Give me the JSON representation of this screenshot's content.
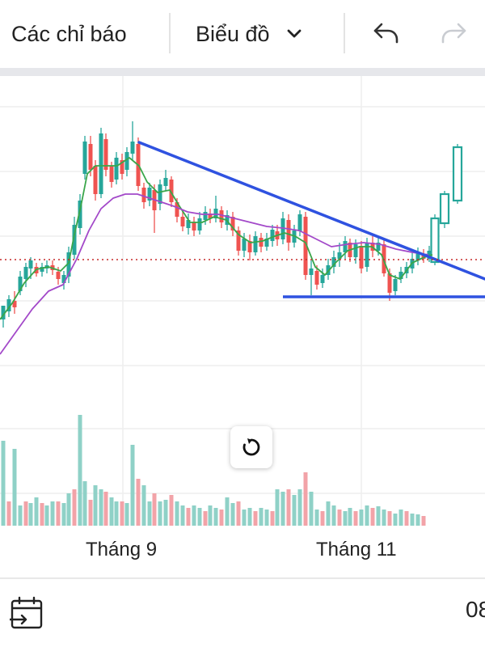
{
  "toolbar": {
    "indicators_label": "Các chỉ báo",
    "chart_type_label": "Biểu đồ",
    "chart_type_icon": "chevron-down-icon",
    "undo_icon": "undo-icon",
    "redo_icon": "redo-icon"
  },
  "chart": {
    "colors": {
      "up": "#26a69a",
      "down": "#ef5350",
      "volume_up": "#8fd1c7",
      "volume_down": "#f2a3a8",
      "ma_short": "#3aa64a",
      "ma_long": "#a349c9",
      "trendline": "#2f52e0",
      "price_line": "#c62828"
    },
    "reset_icon": "reset-icon"
  },
  "chart_data": {
    "type": "candlestick",
    "x_labels": [
      "Tháng 9",
      "Tháng 11"
    ],
    "overlays": [
      "short moving average (green)",
      "long moving average (purple)",
      "descending trendline (blue)",
      "horizontal support (blue)",
      "current price dotted line (red)"
    ],
    "volume_histogram": true,
    "grid": true
  },
  "bottom": {
    "date_range_icon": "calendar-go-to-date-icon",
    "time_text": "08"
  }
}
